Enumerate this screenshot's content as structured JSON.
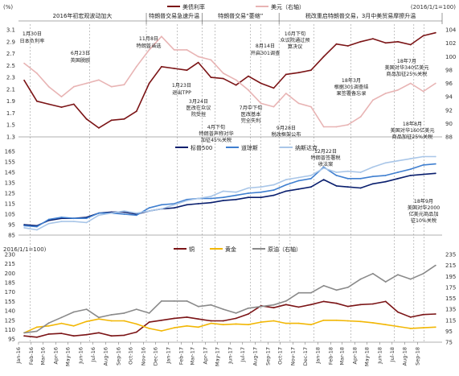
{
  "chart_data": [
    {
      "type": "line",
      "panel": "top",
      "unit_left": "(%)",
      "unit_right": "(2016/1/1=100)",
      "ylim_left": [
        1.3,
        3.1
      ],
      "yticks_left": [
        "3.1",
        "2.9",
        "2.7",
        "2.5",
        "2.3",
        "2.1",
        "1.9",
        "1.7",
        "1.5",
        "1.3"
      ],
      "ylim_right": [
        88,
        104
      ],
      "yticks_right": [
        "104",
        "102",
        "100",
        "98",
        "96",
        "94",
        "92",
        "90",
        "88"
      ],
      "legend_placement": "top-center",
      "series": [
        {
          "name": "美债利率",
          "axis": "left",
          "color": "#7b1416",
          "x": [
            "2016-01",
            "2016-02",
            "2016-03",
            "2016-04",
            "2016-05",
            "2016-06",
            "2016-07",
            "2016-08",
            "2016-09",
            "2016-10",
            "2016-11",
            "2016-12",
            "2017-01",
            "2017-02",
            "2017-03",
            "2017-04",
            "2017-05",
            "2017-06",
            "2017-07",
            "2017-08",
            "2017-09",
            "2017-10",
            "2017-11",
            "2017-12",
            "2018-01",
            "2018-02",
            "2018-03",
            "2018-04",
            "2018-05",
            "2018-06",
            "2018-07",
            "2018-08",
            "2018-09",
            "2018-10"
          ],
          "values": [
            2.25,
            1.9,
            1.85,
            1.8,
            1.85,
            1.6,
            1.45,
            1.58,
            1.6,
            1.73,
            2.2,
            2.48,
            2.45,
            2.42,
            2.55,
            2.3,
            2.28,
            2.17,
            2.32,
            2.2,
            2.12,
            2.35,
            2.38,
            2.42,
            2.65,
            2.86,
            2.83,
            2.9,
            2.95,
            2.88,
            2.9,
            2.85,
            3.0,
            3.05
          ]
        },
        {
          "name": "美元（右轴）",
          "axis": "right",
          "color": "#e8b4b4",
          "x": [
            "2016-01",
            "2016-02",
            "2016-03",
            "2016-04",
            "2016-05",
            "2016-06",
            "2016-07",
            "2016-08",
            "2016-09",
            "2016-10",
            "2016-11",
            "2016-12",
            "2017-01",
            "2017-02",
            "2017-03",
            "2017-04",
            "2017-05",
            "2017-06",
            "2017-07",
            "2017-08",
            "2017-09",
            "2017-10",
            "2017-11",
            "2017-12",
            "2018-01",
            "2018-02",
            "2018-03",
            "2018-04",
            "2018-05",
            "2018-06",
            "2018-07",
            "2018-08",
            "2018-09",
            "2018-10"
          ],
          "values": [
            99,
            97.5,
            95.5,
            94,
            95.5,
            96,
            96.5,
            95.5,
            95.8,
            98.5,
            101,
            103,
            101,
            101,
            100,
            99.5,
            97.5,
            96.5,
            95,
            93,
            92.5,
            94.5,
            93,
            92.5,
            89.5,
            89.5,
            89.8,
            91,
            93.5,
            94.5,
            95,
            96,
            94.8,
            96
          ]
        }
      ],
      "annotations": [
        {
          "text": "1月30日",
          "x": "2016-01-30"
        },
        {
          "text": "日本负利率",
          "x": "2016-01-30"
        },
        {
          "text": "6月23日",
          "x": "2016-06-23"
        },
        {
          "text": "英国脱欧",
          "x": "2016-06-23"
        },
        {
          "text": "11月8日",
          "x": "2016-11-08"
        },
        {
          "text": "特朗普当选",
          "x": "2016-11-08"
        },
        {
          "text": "1月23日",
          "x": "2017-01-23"
        },
        {
          "text": "退出TPP",
          "x": "2017-01-23"
        },
        {
          "text": "3月24日",
          "x": "2017-03-24"
        },
        {
          "text": "医改在众议",
          "x": "2017-03-24"
        },
        {
          "text": "院受挫",
          "x": "2017-03-24"
        },
        {
          "text": "4月下旬",
          "x": "2017-04-25"
        },
        {
          "text": "特朗普声称对华",
          "x": "2017-04-25"
        },
        {
          "text": "加征45%关税",
          "x": "2017-04-25"
        },
        {
          "text": "7月中下旬",
          "x": "2017-07-20"
        },
        {
          "text": "医改基本",
          "x": "2017-07-20"
        },
        {
          "text": "完全失利",
          "x": "2017-07-20"
        },
        {
          "text": "8月14日",
          "x": "2017-08-14"
        },
        {
          "text": "开启301调查",
          "x": "2017-08-14"
        },
        {
          "text": "9月28日",
          "x": "2017-09-28"
        },
        {
          "text": "税改框架公布",
          "x": "2017-09-28"
        },
        {
          "text": "10月下旬",
          "x": "2017-10-25"
        },
        {
          "text": "众议院通过预",
          "x": "2017-10-25"
        },
        {
          "text": "算决议",
          "x": "2017-10-25"
        },
        {
          "text": "18年3月",
          "x": "2018-03-22"
        },
        {
          "text": "根据301调查结",
          "x": "2018-03-22"
        },
        {
          "text": "果签署备忘录",
          "x": "2018-03-22"
        },
        {
          "text": "18年7月",
          "x": "2018-07-06"
        },
        {
          "text": "美国对华340亿美元",
          "x": "2018-07-06"
        },
        {
          "text": "商品加征25%关税",
          "x": "2018-07-06"
        },
        {
          "text": "18年8月",
          "x": "2018-08-23"
        },
        {
          "text": "美国对华160亿美元",
          "x": "2018-08-23"
        },
        {
          "text": "商品加征25%关税",
          "x": "2018-08-23"
        }
      ]
    },
    {
      "type": "line",
      "panel": "middle",
      "ylim": [
        85,
        165
      ],
      "yticks": [
        "165",
        "155",
        "145",
        "135",
        "125",
        "115",
        "105",
        "95",
        "85"
      ],
      "legend_placement": "top-left",
      "series": [
        {
          "name": "标普500",
          "color": "#0a1f6e",
          "x": [
            "2016-01",
            "2016-02",
            "2016-03",
            "2016-04",
            "2016-05",
            "2016-06",
            "2016-07",
            "2016-08",
            "2016-09",
            "2016-10",
            "2016-11",
            "2016-12",
            "2017-01",
            "2017-02",
            "2017-03",
            "2017-04",
            "2017-05",
            "2017-06",
            "2017-07",
            "2017-08",
            "2017-09",
            "2017-10",
            "2017-11",
            "2017-12",
            "2018-01",
            "2018-02",
            "2018-03",
            "2018-04",
            "2018-05",
            "2018-06",
            "2018-07",
            "2018-08",
            "2018-09",
            "2018-10"
          ],
          "values": [
            95,
            94,
            99,
            101,
            101,
            102,
            106,
            107,
            107,
            105,
            108,
            110,
            111,
            114,
            115,
            116,
            118,
            119,
            121,
            121,
            123,
            127,
            129,
            131,
            138,
            132,
            131,
            130,
            134,
            136,
            139,
            142,
            143,
            144
          ]
        },
        {
          "name": "道琼斯",
          "color": "#3f7fd0",
          "x": [
            "2016-01",
            "2016-02",
            "2016-03",
            "2016-04",
            "2016-05",
            "2016-06",
            "2016-07",
            "2016-08",
            "2016-09",
            "2016-10",
            "2016-11",
            "2016-12",
            "2017-01",
            "2017-02",
            "2017-03",
            "2017-04",
            "2017-05",
            "2017-06",
            "2017-07",
            "2017-08",
            "2017-09",
            "2017-10",
            "2017-11",
            "2017-12",
            "2018-01",
            "2018-02",
            "2018-03",
            "2018-04",
            "2018-05",
            "2018-06",
            "2018-07",
            "2018-08",
            "2018-09",
            "2018-10"
          ],
          "values": [
            94,
            93,
            100,
            102,
            101,
            101,
            106,
            106,
            105,
            104,
            111,
            114,
            115,
            119,
            120,
            120,
            121,
            123,
            125,
            126,
            128,
            133,
            137,
            139,
            150,
            142,
            139,
            139,
            141,
            142,
            145,
            148,
            152,
            153
          ]
        },
        {
          "name": "纳斯达克",
          "color": "#a9c6e8",
          "x": [
            "2016-01",
            "2016-02",
            "2016-03",
            "2016-04",
            "2016-05",
            "2016-06",
            "2016-07",
            "2016-08",
            "2016-09",
            "2016-10",
            "2016-11",
            "2016-12",
            "2017-01",
            "2017-02",
            "2017-03",
            "2017-04",
            "2017-05",
            "2017-06",
            "2017-07",
            "2017-08",
            "2017-09",
            "2017-10",
            "2017-11",
            "2017-12",
            "2018-01",
            "2018-02",
            "2018-03",
            "2018-04",
            "2018-05",
            "2018-06",
            "2018-07",
            "2018-08",
            "2018-09",
            "2018-10"
          ],
          "values": [
            92,
            90,
            96,
            98,
            98,
            97,
            104,
            106,
            108,
            106,
            108,
            110,
            114,
            118,
            120,
            122,
            127,
            126,
            130,
            131,
            133,
            138,
            140,
            142,
            149,
            145,
            146,
            145,
            150,
            154,
            156,
            158,
            160,
            160
          ]
        }
      ],
      "annotations": [
        {
          "text": "12月22日",
          "x": "2017-12-22"
        },
        {
          "text": "特朗普签署税",
          "x": "2017-12-22"
        },
        {
          "text": "收法案",
          "x": "2017-12-22"
        },
        {
          "text": "18年9月",
          "x": "2018-09-17"
        },
        {
          "text": "美国对华2000",
          "x": "2018-09-17"
        },
        {
          "text": "亿美元商品加",
          "x": "2018-09-17"
        },
        {
          "text": "征10%关税",
          "x": "2018-09-17"
        }
      ]
    },
    {
      "type": "line",
      "panel": "bottom",
      "unit_left": "2016/1/1=100)",
      "ylim_left": [
        90,
        230
      ],
      "yticks_left": [
        "230",
        "215",
        "200",
        "185",
        "170",
        "155",
        "140",
        "125",
        "110",
        "95"
      ],
      "ylim_right": [
        75,
        235
      ],
      "yticks_right": [
        "235",
        "215",
        "195",
        "175",
        "155",
        "135",
        "115",
        "95",
        "75"
      ],
      "legend_placement": "top-center",
      "series": [
        {
          "name": "铜",
          "axis": "left",
          "color": "#7b1416",
          "x": [
            "2016-01",
            "2016-02",
            "2016-03",
            "2016-04",
            "2016-05",
            "2016-06",
            "2016-07",
            "2016-08",
            "2016-09",
            "2016-10",
            "2016-11",
            "2016-12",
            "2017-01",
            "2017-02",
            "2017-03",
            "2017-04",
            "2017-05",
            "2017-06",
            "2017-07",
            "2017-08",
            "2017-09",
            "2017-10",
            "2017-11",
            "2017-12",
            "2018-01",
            "2018-02",
            "2018-03",
            "2018-04",
            "2018-05",
            "2018-06",
            "2018-07",
            "2018-08",
            "2018-09",
            "2018-10"
          ],
          "values": [
            100,
            98,
            103,
            104,
            100,
            102,
            105,
            100,
            101,
            106,
            122,
            125,
            128,
            130,
            127,
            124,
            124,
            128,
            135,
            148,
            145,
            150,
            146,
            150,
            155,
            152,
            147,
            150,
            151,
            155,
            138,
            130,
            134,
            135
          ]
        },
        {
          "name": "黄金",
          "axis": "left",
          "color": "#f2b705",
          "x": [
            "2016-01",
            "2016-02",
            "2016-03",
            "2016-04",
            "2016-05",
            "2016-06",
            "2016-07",
            "2016-08",
            "2016-09",
            "2016-10",
            "2016-11",
            "2016-12",
            "2017-01",
            "2017-02",
            "2017-03",
            "2017-04",
            "2017-05",
            "2017-06",
            "2017-07",
            "2017-08",
            "2017-09",
            "2017-10",
            "2017-11",
            "2017-12",
            "2018-01",
            "2018-02",
            "2018-03",
            "2018-04",
            "2018-05",
            "2018-06",
            "2018-07",
            "2018-08",
            "2018-09",
            "2018-10"
          ],
          "values": [
            105,
            114,
            116,
            120,
            116,
            123,
            127,
            124,
            124,
            119,
            112,
            108,
            113,
            116,
            114,
            120,
            118,
            119,
            118,
            122,
            124,
            120,
            120,
            118,
            125,
            125,
            124,
            123,
            121,
            118,
            115,
            112,
            113,
            114
          ]
        },
        {
          "name": "原油（右轴）",
          "axis": "right",
          "color": "#8a8a8a",
          "x": [
            "2016-01",
            "2016-02",
            "2016-03",
            "2016-04",
            "2016-05",
            "2016-06",
            "2016-07",
            "2016-08",
            "2016-09",
            "2016-10",
            "2016-11",
            "2016-12",
            "2017-01",
            "2017-02",
            "2017-03",
            "2017-04",
            "2017-05",
            "2017-06",
            "2017-07",
            "2017-08",
            "2017-09",
            "2017-10",
            "2017-11",
            "2017-12",
            "2018-01",
            "2018-02",
            "2018-03",
            "2018-04",
            "2018-05",
            "2018-06",
            "2018-07",
            "2018-08",
            "2018-09",
            "2018-10"
          ],
          "values": [
            92,
            95,
            110,
            120,
            130,
            135,
            120,
            125,
            128,
            135,
            128,
            150,
            150,
            150,
            140,
            143,
            135,
            128,
            137,
            140,
            143,
            150,
            165,
            165,
            178,
            170,
            175,
            190,
            200,
            185,
            198,
            190,
            200,
            215
          ]
        }
      ]
    }
  ],
  "periods": [
    {
      "label": "2016年初宏观波动加大",
      "start": "2016-01-01",
      "end": "2016-11-08"
    },
    {
      "label": "特朗普交易急速升温",
      "start": "2016-11-08",
      "end": "2017-03-24"
    },
    {
      "label": "特朗普交易“萎缩”",
      "start": "2017-03-24",
      "end": "2017-09-28"
    },
    {
      "label": "税改重启特朗普交易，3月中美贸易摩擦升温",
      "start": "2017-09-28",
      "end": "2018-10-31"
    }
  ],
  "x_axis": {
    "ticks": [
      "Jan-16",
      "Feb-16",
      "Mar-16",
      "Apr-16",
      "May-16",
      "Jun-16",
      "Jul-16",
      "Aug-16",
      "Sep-16",
      "Oct-16",
      "Nov-16",
      "Dec-16",
      "Jan-17",
      "Feb-17",
      "Mar-17",
      "Apr-17",
      "May-17",
      "Jun-17",
      "Jul-17",
      "Aug-17",
      "Sep-17",
      "Oct-17",
      "Nov-17",
      "Dec-17",
      "Jan-18",
      "Feb-18",
      "Mar-18",
      "Apr-18",
      "May-18",
      "Jun-18",
      "Jul-18",
      "Aug-18",
      "Sep-18"
    ]
  },
  "colors": {
    "divider": "#999999",
    "annotation_text": "#222222",
    "vline": "#888888"
  }
}
